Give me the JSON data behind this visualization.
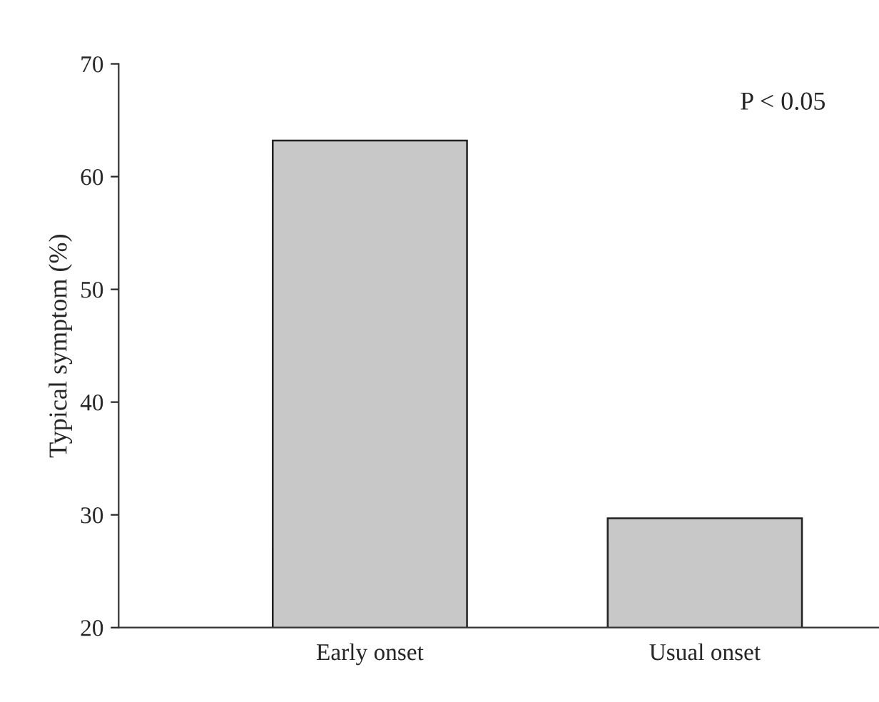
{
  "chart_data": {
    "type": "bar",
    "ylabel": "Typical symptom (%)",
    "categories": [
      "Early onset",
      "Usual onset"
    ],
    "values": [
      63.2,
      29.7
    ],
    "color": "#c8c8c8",
    "ylim": [
      20,
      70
    ],
    "yticks": [
      20,
      30,
      40,
      50,
      60,
      70
    ],
    "annotations": [
      "P < 0.05"
    ],
    "grid": false,
    "legend": false
  }
}
